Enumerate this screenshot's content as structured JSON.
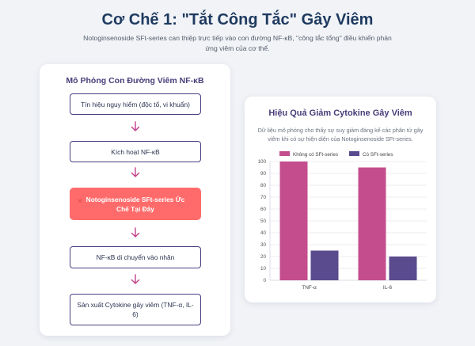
{
  "header": {
    "title": "Cơ Chế 1: \"Tắt Công Tắc\" Gây Viêm",
    "subtitle": "Notoginsenoside SFt-series can thiệp trực tiếp vào con đường NF-κB, \"công tắc tổng\" điều khiển phản ứng viêm của cơ thể."
  },
  "pathway": {
    "title": "Mô Phỏng Con Đường Viêm NF-κB",
    "steps": [
      "Tín hiệu nguy hiểm (độc tố, vi khuẩn)",
      "Kích hoạt NF-κB",
      "Notoginsenoside SFt-series Ức Chế Tại Đây",
      "NF-κB di chuyển vào nhân",
      "Sản xuất Cytokine gây viêm (TNF-α, IL-6)"
    ],
    "inhibit_icon": "x-mark-icon",
    "arrow_icon": "chevron-down-icon",
    "colors": {
      "box_border": "#4a3f80",
      "highlight": "#ff6b6b",
      "arrow": "#c2418a"
    }
  },
  "chart_panel": {
    "title": "Hiệu Quả Giảm Cytokine Gây Viêm",
    "description": "Dữ liệu mô phỏng cho thấy sự suy giảm đáng kể các phân tử gây viêm khi có sự hiện diện của Notoginsenoside SFt-series."
  },
  "chart_data": {
    "type": "bar",
    "categories": [
      "TNF-α",
      "IL-6"
    ],
    "series": [
      {
        "name": "Không có SFt-series",
        "values": [
          100,
          95
        ],
        "color": "#c44d8e"
      },
      {
        "name": "Có SFt-series",
        "values": [
          25,
          20
        ],
        "color": "#5a4a8e"
      }
    ],
    "yticks": [
      "0",
      "10",
      "20",
      "30",
      "40",
      "50",
      "60",
      "70",
      "80",
      "90",
      "100"
    ],
    "ylim": [
      0,
      100
    ],
    "grid": true,
    "legend": "top"
  }
}
